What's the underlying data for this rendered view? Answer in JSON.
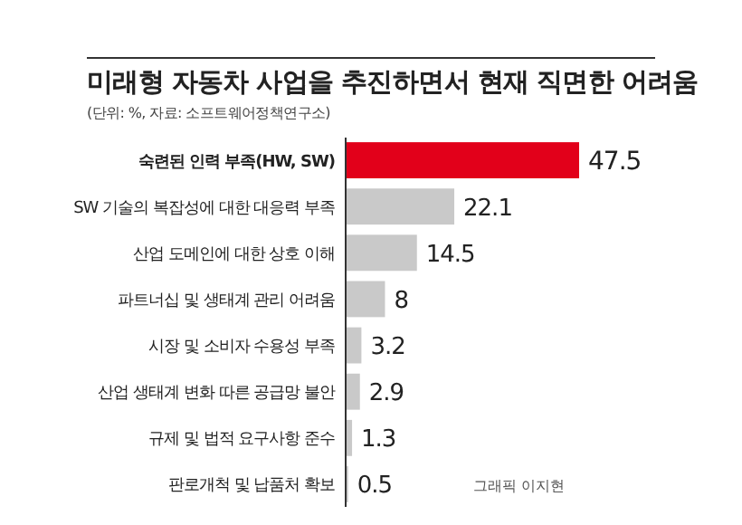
{
  "chart_data": {
    "type": "bar",
    "orientation": "horizontal",
    "title": "미래형 자동차 사업을 추진하면서 현재 직면한 어려움",
    "subtitle": "(단위: %, 자료: 소프트웨어정책연구소)",
    "categories": [
      "숙련된 인력 부족(HW, SW)",
      "SW 기술의 복잡성에 대한 대응력 부족",
      "산업 도메인에 대한 상호 이해",
      "파트너십 및 생태계 관리 어려움",
      "시장 및 소비자 수용성 부족",
      "산업 생태계 변화 따른 공급망 불안",
      "규제 및 법적 요구사항 준수",
      "판로개척 및 납품처 확보"
    ],
    "values": [
      47.5,
      22.1,
      14.5,
      8,
      3.2,
      2.9,
      1.3,
      0.5
    ],
    "colors": [
      "#e2001a",
      "#c9c9c9",
      "#c9c9c9",
      "#c9c9c9",
      "#c9c9c9",
      "#c9c9c9",
      "#c9c9c9",
      "#c9c9c9"
    ],
    "data_labels": true,
    "annotations": [
      "그래픽 이지현"
    ]
  }
}
